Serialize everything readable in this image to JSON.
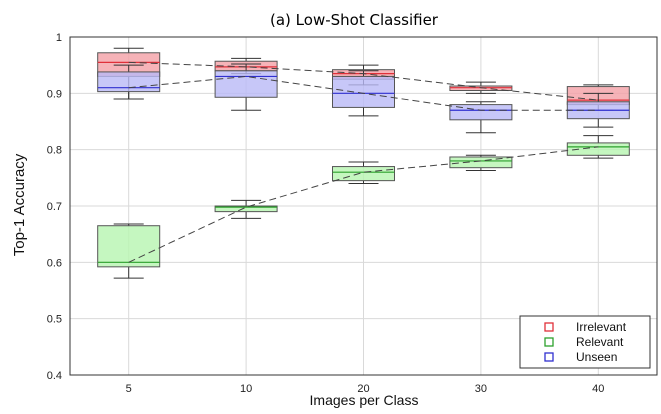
{
  "chart_data": {
    "type": "box",
    "title": "(a) Low-Shot Classifier",
    "xlabel": "Images per Class",
    "ylabel": "Top-1 Accuracy",
    "categories": [
      "5",
      "10",
      "20",
      "30",
      "40"
    ],
    "ylim": [
      0.4,
      1.0
    ],
    "yticks": [
      "0.4",
      "0.5",
      "0.6",
      "0.7",
      "0.8",
      "0.9",
      "1"
    ],
    "grid": true,
    "legend_position": "bottom-right",
    "series": [
      {
        "name": "Irrelevant",
        "color": "#f4a0a6",
        "edge": "#e0303a",
        "boxes": [
          {
            "min": 0.89,
            "q1": 0.93,
            "median": 0.955,
            "q3": 0.972,
            "max": 0.98
          },
          {
            "min": 0.935,
            "q1": 0.94,
            "median": 0.947,
            "q3": 0.957,
            "max": 0.962
          },
          {
            "min": 0.915,
            "q1": 0.925,
            "median": 0.935,
            "q3": 0.942,
            "max": 0.95
          },
          {
            "min": 0.9,
            "q1": 0.905,
            "median": 0.91,
            "q3": 0.913,
            "max": 0.92
          },
          {
            "min": 0.87,
            "q1": 0.88,
            "median": 0.888,
            "q3": 0.912,
            "max": 0.915
          }
        ]
      },
      {
        "name": "Relevant",
        "color": "#b7f5b0",
        "edge": "#2ca02c",
        "boxes": [
          {
            "min": 0.572,
            "q1": 0.592,
            "median": 0.6,
            "q3": 0.665,
            "max": 0.668
          },
          {
            "min": 0.678,
            "q1": 0.69,
            "median": 0.698,
            "q3": 0.7,
            "max": 0.71
          },
          {
            "min": 0.74,
            "q1": 0.745,
            "median": 0.76,
            "q3": 0.77,
            "max": 0.778
          },
          {
            "min": 0.763,
            "q1": 0.768,
            "median": 0.78,
            "q3": 0.787,
            "max": 0.79
          },
          {
            "min": 0.785,
            "q1": 0.79,
            "median": 0.805,
            "q3": 0.812,
            "max": 0.825
          }
        ]
      },
      {
        "name": "Unseen",
        "color": "#b9b9f6",
        "edge": "#3030d0",
        "boxes": [
          {
            "min": 0.89,
            "q1": 0.903,
            "median": 0.91,
            "q3": 0.938,
            "max": 0.95
          },
          {
            "min": 0.87,
            "q1": 0.893,
            "median": 0.93,
            "q3": 0.94,
            "max": 0.952
          },
          {
            "min": 0.86,
            "q1": 0.875,
            "median": 0.9,
            "q3": 0.93,
            "max": 0.94
          },
          {
            "min": 0.83,
            "q1": 0.853,
            "median": 0.87,
            "q3": 0.88,
            "max": 0.885
          },
          {
            "min": 0.84,
            "q1": 0.855,
            "median": 0.87,
            "q3": 0.885,
            "max": 0.9
          }
        ]
      }
    ]
  }
}
